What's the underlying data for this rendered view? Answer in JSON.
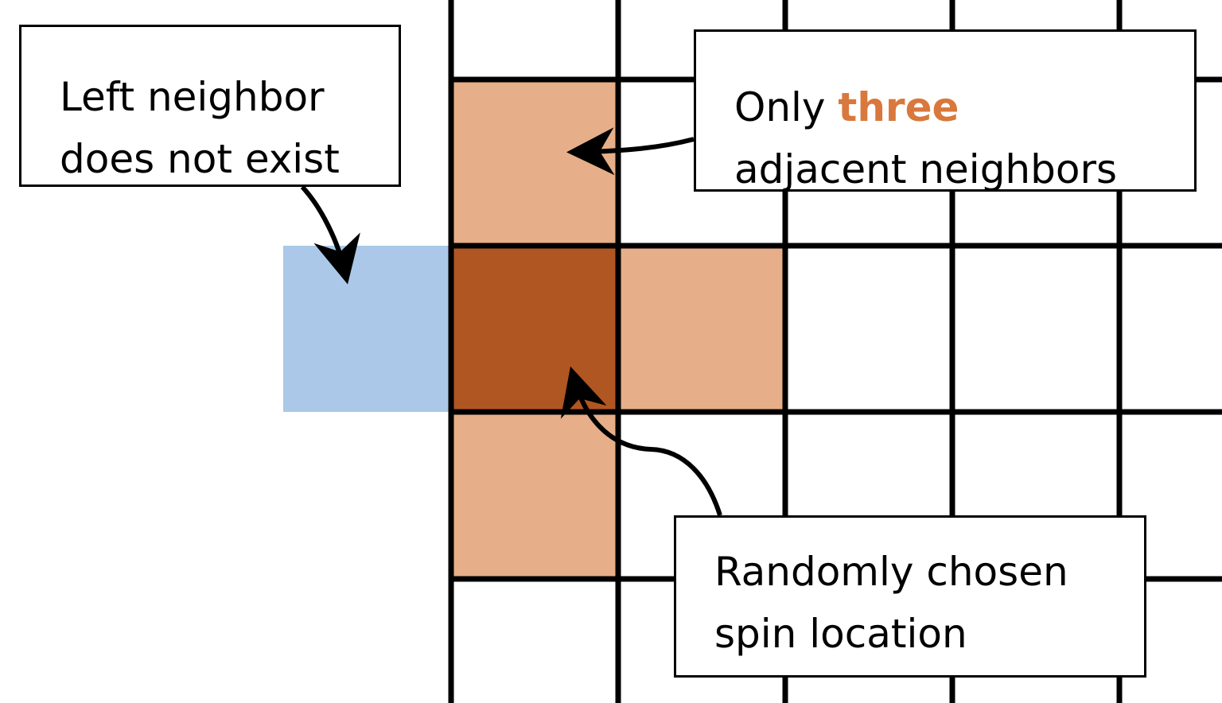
{
  "colors": {
    "neighbor_fill": "#E6AF89",
    "chosen_fill": "#B05622",
    "missing_fill": "#ABC8E8",
    "grid_line": "#000000",
    "emphasis_text": "#D9783C"
  },
  "callouts": {
    "left": {
      "line1": "Left neighbor",
      "line2": "does not exist"
    },
    "right": {
      "prefix": "Only ",
      "emphasis": "three",
      "line2": "adjacent neighbors"
    },
    "bottom": {
      "line1": "Randomly chosen",
      "line2": "spin location"
    }
  }
}
